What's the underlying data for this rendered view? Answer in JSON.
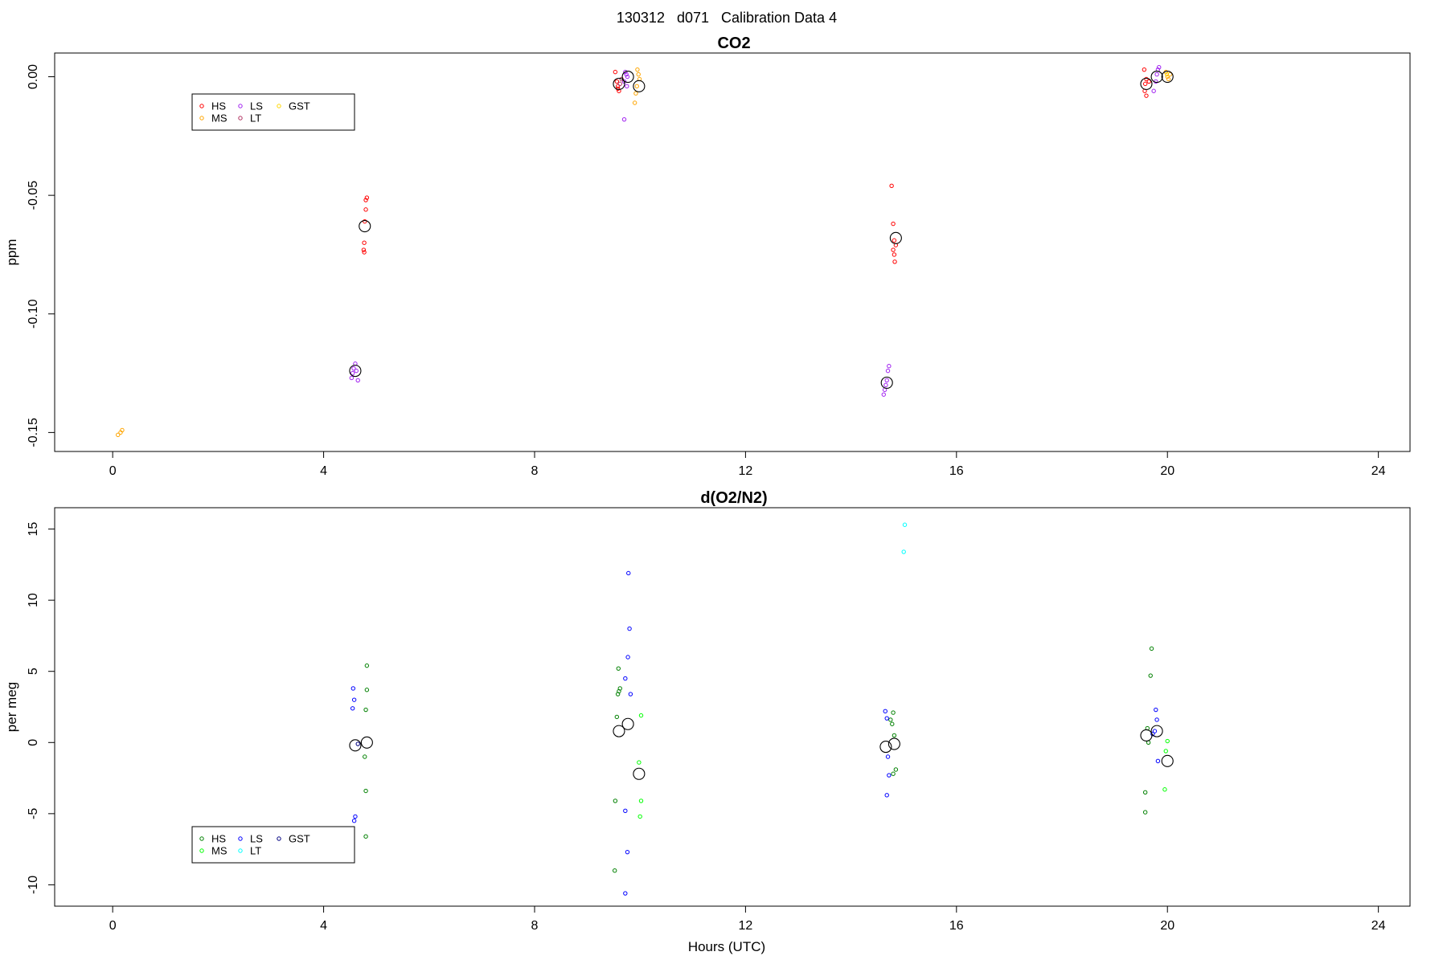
{
  "figure": {
    "suptitle": "130312   d071   Calibration Data 4"
  },
  "chart_data": [
    {
      "type": "scatter",
      "title": "CO2",
      "ylabel": "ppm",
      "xlabel": "",
      "xlim": [
        -1.1,
        24.6
      ],
      "ylim": [
        -0.158,
        0.01
      ],
      "xticks": [
        0,
        4,
        8,
        12,
        16,
        20,
        24
      ],
      "xtick_labels": [
        "0",
        "4",
        "8",
        "12",
        "16",
        "20",
        "24"
      ],
      "yticks": [
        0.0,
        -0.05,
        -0.1,
        -0.15
      ],
      "ytick_labels": [
        "0.00",
        "-0.05",
        "-0.10",
        "-0.15"
      ],
      "grid": false,
      "legend": {
        "placement": "upper-left",
        "entries": [
          {
            "name": "HS",
            "color": "#ff0000"
          },
          {
            "name": "MS",
            "color": "#ffa500"
          },
          {
            "name": "LS",
            "color": "#a020f0"
          },
          {
            "name": "LT",
            "color": "#b03060"
          },
          {
            "name": "GST",
            "color": "#ffd700"
          }
        ]
      },
      "series": [
        {
          "name": "HS",
          "color": "#ff0000",
          "points": [
            [
              4.82,
              -0.051
            ],
            [
              4.8,
              -0.052
            ],
            [
              4.8,
              -0.056
            ],
            [
              4.78,
              -0.061
            ],
            [
              4.77,
              -0.07
            ],
            [
              4.76,
              -0.073
            ],
            [
              4.77,
              -0.074
            ],
            [
              9.53,
              0.002
            ],
            [
              9.56,
              -0.002
            ],
            [
              9.58,
              -0.004
            ],
            [
              9.58,
              -0.005
            ],
            [
              9.6,
              -0.006
            ],
            [
              14.77,
              -0.046
            ],
            [
              14.8,
              -0.062
            ],
            [
              14.82,
              -0.069
            ],
            [
              14.85,
              -0.071
            ],
            [
              14.8,
              -0.073
            ],
            [
              14.82,
              -0.075
            ],
            [
              14.83,
              -0.078
            ],
            [
              19.56,
              0.003
            ],
            [
              19.6,
              -0.001
            ],
            [
              19.58,
              -0.003
            ],
            [
              19.57,
              -0.006
            ],
            [
              19.6,
              -0.008
            ],
            [
              19.65,
              -0.002
            ]
          ]
        },
        {
          "name": "MS",
          "color": "#ffa500",
          "points": [
            [
              0.1,
              -0.151
            ],
            [
              0.15,
              -0.15
            ],
            [
              0.18,
              -0.149
            ],
            [
              9.95,
              0.003
            ],
            [
              9.97,
              0.001
            ],
            [
              9.99,
              -0.001
            ],
            [
              9.94,
              -0.004
            ],
            [
              9.92,
              -0.007
            ],
            [
              9.9,
              -0.011
            ],
            [
              19.97,
              0.002
            ],
            [
              20.0,
              0.0
            ],
            [
              20.05,
              0.001
            ],
            [
              20.02,
              -0.001
            ]
          ]
        },
        {
          "name": "LS",
          "color": "#a020f0",
          "points": [
            [
              4.6,
              -0.121
            ],
            [
              4.57,
              -0.123
            ],
            [
              4.62,
              -0.124
            ],
            [
              4.55,
              -0.125
            ],
            [
              4.53,
              -0.127
            ],
            [
              4.65,
              -0.128
            ],
            [
              9.72,
              0.002
            ],
            [
              9.74,
              0.001
            ],
            [
              9.76,
              0.0
            ],
            [
              9.7,
              -0.002
            ],
            [
              9.75,
              -0.004
            ],
            [
              9.7,
              -0.018
            ],
            [
              14.72,
              -0.122
            ],
            [
              14.7,
              -0.124
            ],
            [
              14.68,
              -0.128
            ],
            [
              14.66,
              -0.13
            ],
            [
              14.64,
              -0.132
            ],
            [
              14.62,
              -0.134
            ],
            [
              19.84,
              0.004
            ],
            [
              19.82,
              0.003
            ],
            [
              19.8,
              0.001
            ],
            [
              19.78,
              -0.002
            ],
            [
              19.74,
              -0.006
            ]
          ]
        },
        {
          "name": "LT",
          "color": "#b03060",
          "points": [
            [
              9.65,
              -0.001
            ],
            [
              9.62,
              -0.003
            ]
          ]
        },
        {
          "name": "GST",
          "color": "#ffd700",
          "points": [
            [
              19.99,
              0.001
            ]
          ]
        },
        {
          "name": "",
          "color": "#000000",
          "marker": "large",
          "points": [
            [
              4.78,
              -0.063
            ],
            [
              4.6,
              -0.124
            ],
            [
              9.6,
              -0.003
            ],
            [
              9.77,
              0.0
            ],
            [
              9.98,
              -0.004
            ],
            [
              14.85,
              -0.068
            ],
            [
              14.68,
              -0.129
            ],
            [
              19.6,
              -0.003
            ],
            [
              19.8,
              -0.0
            ],
            [
              20.0,
              0.0
            ]
          ]
        }
      ]
    },
    {
      "type": "scatter",
      "title": "d(O2/N2)",
      "ylabel": "per meg",
      "xlabel": "Hours (UTC)",
      "xlim": [
        -1.1,
        24.6
      ],
      "ylim": [
        -11.5,
        16.5
      ],
      "xticks": [
        0,
        4,
        8,
        12,
        16,
        20,
        24
      ],
      "xtick_labels": [
        "0",
        "4",
        "8",
        "12",
        "16",
        "20",
        "24"
      ],
      "yticks": [
        15,
        10,
        5,
        0,
        -5,
        -10
      ],
      "ytick_labels": [
        "15",
        "10",
        "5",
        "0",
        "-5",
        "-10"
      ],
      "grid": false,
      "legend": {
        "placement": "lower-left",
        "entries": [
          {
            "name": "HS",
            "color": "#008000"
          },
          {
            "name": "MS",
            "color": "#00ff00"
          },
          {
            "name": "LS",
            "color": "#0000ff"
          },
          {
            "name": "LT",
            "color": "#00ffff"
          },
          {
            "name": "GST",
            "color": "#000080"
          }
        ]
      },
      "series": [
        {
          "name": "HS",
          "color": "#008000",
          "points": [
            [
              4.82,
              5.4
            ],
            [
              4.82,
              3.7
            ],
            [
              4.8,
              2.3
            ],
            [
              4.78,
              -1.0
            ],
            [
              4.8,
              -3.4
            ],
            [
              4.8,
              -6.6
            ],
            [
              9.59,
              5.2
            ],
            [
              9.62,
              3.8
            ],
            [
              9.6,
              3.6
            ],
            [
              9.58,
              3.4
            ],
            [
              9.56,
              1.8
            ],
            [
              9.53,
              -4.1
            ],
            [
              9.52,
              -9.0
            ],
            [
              14.8,
              2.1
            ],
            [
              14.75,
              1.6
            ],
            [
              14.78,
              1.3
            ],
            [
              14.82,
              0.5
            ],
            [
              14.85,
              -1.9
            ],
            [
              14.8,
              -2.2
            ],
            [
              19.7,
              6.6
            ],
            [
              19.68,
              4.7
            ],
            [
              19.62,
              1.0
            ],
            [
              19.64,
              0.0
            ],
            [
              19.58,
              -3.5
            ],
            [
              19.58,
              -4.9
            ]
          ]
        },
        {
          "name": "MS",
          "color": "#00ff00",
          "points": [
            [
              10.02,
              1.9
            ],
            [
              9.98,
              -1.4
            ],
            [
              10.02,
              -4.1
            ],
            [
              10.0,
              -5.2
            ],
            [
              19.97,
              -0.6
            ],
            [
              20.0,
              0.1
            ],
            [
              19.95,
              -3.3
            ]
          ]
        },
        {
          "name": "LS",
          "color": "#0000ff",
          "points": [
            [
              4.56,
              3.8
            ],
            [
              4.58,
              3.0
            ],
            [
              4.55,
              2.4
            ],
            [
              4.6,
              -5.2
            ],
            [
              4.58,
              -5.5
            ],
            [
              9.78,
              11.9
            ],
            [
              9.8,
              8.0
            ],
            [
              9.77,
              6.0
            ],
            [
              9.72,
              4.5
            ],
            [
              9.82,
              3.4
            ],
            [
              9.72,
              -4.8
            ],
            [
              9.76,
              -7.7
            ],
            [
              9.72,
              -10.6
            ],
            [
              14.65,
              2.2
            ],
            [
              14.68,
              1.7
            ],
            [
              14.7,
              -1.0
            ],
            [
              14.72,
              -2.3
            ],
            [
              14.68,
              -3.7
            ],
            [
              19.78,
              2.3
            ],
            [
              19.8,
              1.6
            ],
            [
              19.76,
              0.8
            ],
            [
              19.72,
              0.6
            ],
            [
              19.82,
              -1.3
            ]
          ]
        },
        {
          "name": "LT",
          "color": "#00ffff",
          "points": [
            [
              15.02,
              15.3
            ],
            [
              15.0,
              13.4
            ]
          ]
        },
        {
          "name": "GST",
          "color": "#000080",
          "points": [
            [
              4.65,
              -0.1
            ]
          ]
        },
        {
          "name": "",
          "color": "#000000",
          "marker": "large",
          "points": [
            [
              4.6,
              -0.2
            ],
            [
              4.82,
              0.0
            ],
            [
              9.6,
              0.8
            ],
            [
              9.77,
              1.3
            ],
            [
              9.98,
              -2.2
            ],
            [
              14.66,
              -0.3
            ],
            [
              14.82,
              -0.1
            ],
            [
              19.6,
              0.5
            ],
            [
              19.8,
              0.8
            ],
            [
              20.0,
              -1.3
            ]
          ]
        }
      ]
    }
  ]
}
